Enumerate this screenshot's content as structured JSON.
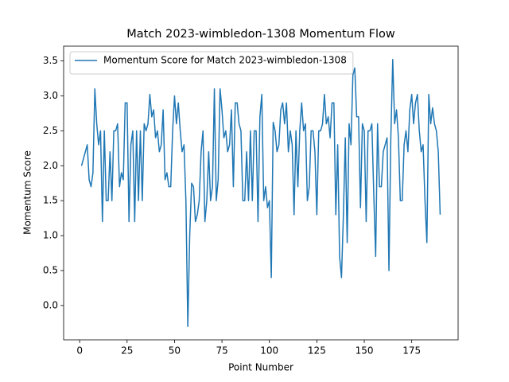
{
  "chart_data": {
    "type": "line",
    "title": "Match 2023-wimbledon-1308 Momentum Flow",
    "xlabel": "Point Number",
    "ylabel": "Momentum Score",
    "legend": "upper left",
    "x": [
      1,
      2,
      3,
      4,
      5,
      6,
      7,
      8,
      9,
      10,
      11,
      12,
      13,
      14,
      15,
      16,
      17,
      18,
      19,
      20,
      21,
      22,
      23,
      24,
      25,
      26,
      27,
      28,
      29,
      30,
      31,
      32,
      33,
      34,
      35,
      36,
      37,
      38,
      39,
      40,
      41,
      42,
      43,
      44,
      45,
      46,
      47,
      48,
      49,
      50,
      51,
      52,
      53,
      54,
      55,
      56,
      57,
      58,
      59,
      60,
      61,
      62,
      63,
      64,
      65,
      66,
      67,
      68,
      69,
      70,
      71,
      72,
      73,
      74,
      75,
      76,
      77,
      78,
      79,
      80,
      81,
      82,
      83,
      84,
      85,
      86,
      87,
      88,
      89,
      90,
      91,
      92,
      93,
      94,
      95,
      96,
      97,
      98,
      99,
      100,
      101,
      102,
      103,
      104,
      105,
      106,
      107,
      108,
      109,
      110,
      111,
      112,
      113,
      114,
      115,
      116,
      117,
      118,
      119,
      120,
      121,
      122,
      123,
      124,
      125,
      126,
      127,
      128,
      129,
      130,
      131,
      132,
      133,
      134,
      135,
      136,
      137,
      138,
      139,
      140,
      141,
      142,
      143,
      144,
      145,
      146,
      147,
      148,
      149,
      150,
      151,
      152,
      153,
      154,
      155,
      156,
      157,
      158,
      159,
      160,
      161,
      162,
      163,
      164,
      165,
      166,
      167,
      168,
      169,
      170,
      171,
      172,
      173,
      174,
      175,
      176,
      177,
      178,
      179,
      180,
      181,
      182,
      183,
      184,
      185,
      186,
      187,
      188,
      189,
      190
    ],
    "series": [
      {
        "name": "Momentum Score for Match 2023-wimbledon-1308",
        "color": "#1f77b4",
        "values": [
          2.0,
          2.1,
          2.2,
          2.3,
          1.8,
          1.7,
          1.9,
          3.1,
          2.6,
          2.3,
          2.5,
          1.2,
          2.5,
          1.5,
          1.5,
          2.2,
          1.5,
          2.5,
          2.5,
          2.6,
          1.7,
          1.9,
          1.8,
          2.9,
          2.9,
          1.2,
          2.3,
          2.5,
          1.2,
          2.5,
          1.5,
          2.5,
          1.5,
          2.6,
          2.5,
          2.6,
          3.02,
          2.7,
          2.8,
          2.4,
          2.5,
          2.2,
          2.3,
          2.8,
          1.8,
          1.9,
          1.7,
          1.7,
          2.5,
          3.0,
          2.6,
          2.9,
          2.5,
          2.2,
          2.3,
          1.5,
          -0.3,
          1.0,
          1.75,
          1.7,
          1.2,
          1.3,
          1.5,
          2.2,
          2.5,
          1.2,
          1.5,
          2.2,
          1.5,
          1.7,
          3.1,
          1.5,
          1.8,
          3.1,
          2.8,
          2.4,
          2.5,
          2.2,
          2.3,
          2.8,
          1.7,
          2.9,
          2.9,
          2.6,
          2.5,
          1.5,
          1.5,
          2.2,
          1.5,
          2.5,
          1.5,
          2.5,
          2.5,
          1.2,
          2.7,
          3.02,
          1.5,
          1.7,
          1.4,
          1.5,
          0.4,
          2.62,
          2.5,
          2.2,
          2.3,
          2.8,
          2.9,
          2.6,
          2.9,
          2.2,
          2.5,
          2.3,
          1.3,
          2.5,
          1.7,
          2.5,
          2.9,
          2.5,
          2.6,
          1.5,
          1.7,
          2.5,
          2.5,
          2.2,
          1.3,
          2.5,
          2.5,
          2.6,
          3.02,
          2.6,
          2.7,
          2.4,
          2.9,
          2.9,
          1.3,
          2.3,
          0.7,
          0.4,
          1.3,
          2.4,
          0.9,
          2.6,
          2.3,
          3.3,
          3.4,
          2.7,
          2.7,
          1.4,
          2.6,
          2.5,
          1.2,
          2.5,
          2.5,
          2.6,
          1.6,
          0.7,
          2.6,
          1.7,
          1.7,
          2.2,
          2.3,
          2.4,
          0.5,
          2.4,
          3.52,
          2.6,
          2.8,
          2.4,
          1.5,
          1.5,
          2.3,
          2.5,
          2.2,
          2.8,
          3.02,
          2.6,
          2.9,
          3.02,
          2.5,
          2.2,
          2.3,
          1.5,
          0.9,
          3.02,
          2.6,
          2.83,
          2.6,
          2.5,
          2.2,
          1.3
        ]
      }
    ],
    "xlim": [
      -8.45,
      199.45
    ],
    "xticks": [
      0,
      25,
      50,
      75,
      100,
      125,
      150,
      175
    ],
    "ylim": [
      -0.491,
      3.711
    ],
    "yticks": [
      {
        "value": 0,
        "label": "0.0"
      },
      0.5,
      {
        "value": 1,
        "label": "1.0"
      },
      1.5,
      {
        "value": 2,
        "label": "2.0"
      },
      2.5,
      {
        "value": 3,
        "label": "3.0"
      },
      3.5
    ]
  }
}
